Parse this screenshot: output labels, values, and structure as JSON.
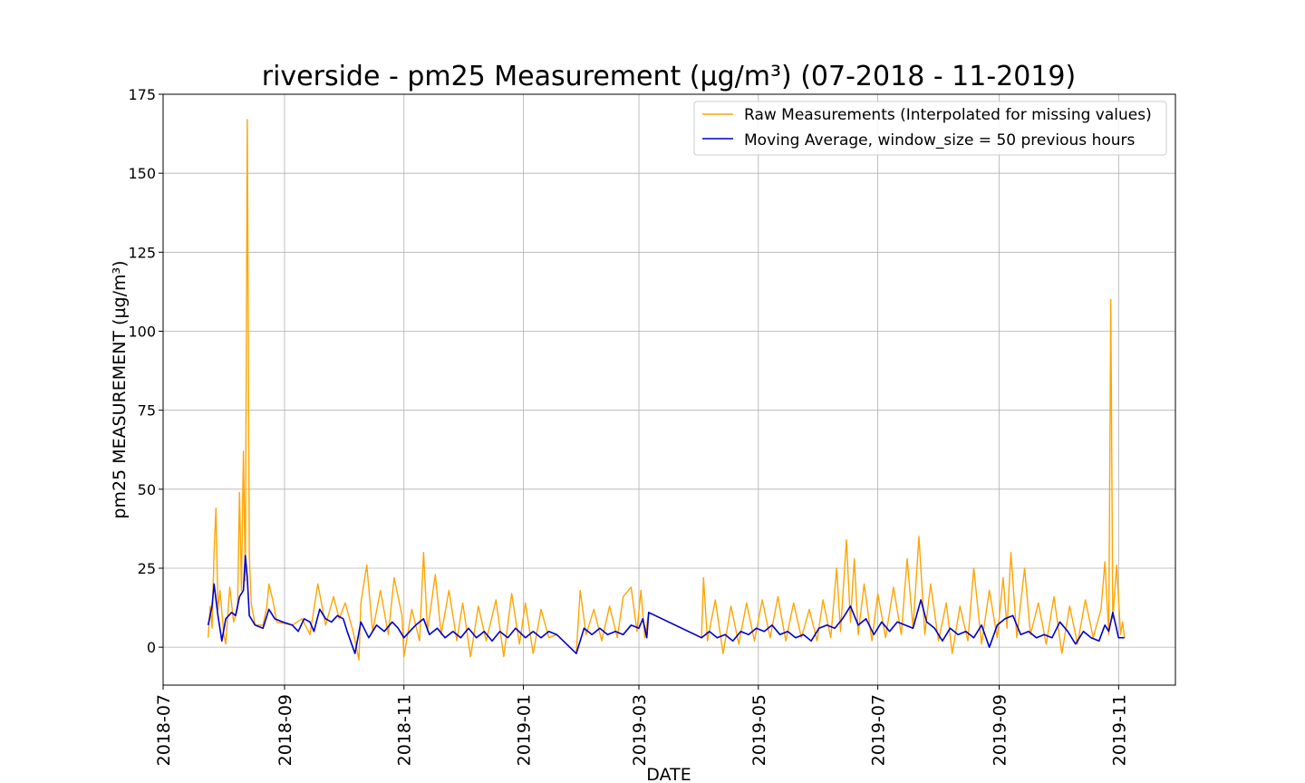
{
  "chart_data": {
    "type": "line",
    "title": "riverside - pm25 Measurement (µg/m³) (07-2018 - 11-2019)",
    "xlabel": "DATE",
    "ylabel": "pm25 MEASUREMENT (µg/m³)",
    "xlim": [
      "2018-07-01",
      "2019-11-30"
    ],
    "ylim": [
      -12,
      175
    ],
    "yticks": [
      0,
      25,
      50,
      75,
      100,
      125,
      150,
      175
    ],
    "xticks": [
      "2018-07",
      "2018-09",
      "2018-11",
      "2019-01",
      "2019-03",
      "2019-05",
      "2019-07",
      "2019-09",
      "2019-11"
    ],
    "grid": true,
    "legend_position": "top-right",
    "series": [
      {
        "name": "Raw Measurements (Interpolated for missing values)",
        "color": "#FFA500",
        "points": [
          [
            "2018-07-24",
            3
          ],
          [
            "2018-07-25",
            13
          ],
          [
            "2018-07-26",
            6
          ],
          [
            "2018-07-27",
            30
          ],
          [
            "2018-07-28",
            44
          ],
          [
            "2018-07-29",
            12
          ],
          [
            "2018-07-30",
            18
          ],
          [
            "2018-08-01",
            4
          ],
          [
            "2018-08-02",
            1
          ],
          [
            "2018-08-04",
            19
          ],
          [
            "2018-08-06",
            8
          ],
          [
            "2018-08-08",
            12
          ],
          [
            "2018-08-09",
            49
          ],
          [
            "2018-08-10",
            18
          ],
          [
            "2018-08-11",
            62
          ],
          [
            "2018-08-12",
            21
          ],
          [
            "2018-08-13",
            167
          ],
          [
            "2018-08-14",
            29
          ],
          [
            "2018-08-15",
            14
          ],
          [
            "2018-08-17",
            7
          ],
          [
            "2018-08-21",
            7
          ],
          [
            "2018-08-23",
            13
          ],
          [
            "2018-08-24",
            20
          ],
          [
            "2018-08-26",
            15
          ],
          [
            "2018-08-28",
            8
          ],
          [
            "2018-09-05",
            7
          ],
          [
            "2018-09-10",
            9
          ],
          [
            "2018-09-14",
            4
          ],
          [
            "2018-09-18",
            20
          ],
          [
            "2018-09-22",
            7
          ],
          [
            "2018-09-26",
            16
          ],
          [
            "2018-09-29",
            9
          ],
          [
            "2018-10-02",
            14
          ],
          [
            "2018-10-06",
            5
          ],
          [
            "2018-10-09",
            -4
          ],
          [
            "2018-10-10",
            14
          ],
          [
            "2018-10-13",
            26
          ],
          [
            "2018-10-16",
            5
          ],
          [
            "2018-10-20",
            18
          ],
          [
            "2018-10-24",
            4
          ],
          [
            "2018-10-27",
            22
          ],
          [
            "2018-10-31",
            10
          ],
          [
            "2018-11-01",
            -3
          ],
          [
            "2018-11-05",
            12
          ],
          [
            "2018-11-09",
            2
          ],
          [
            "2018-11-11",
            30
          ],
          [
            "2018-11-13",
            5
          ],
          [
            "2018-11-17",
            23
          ],
          [
            "2018-11-20",
            4
          ],
          [
            "2018-11-24",
            18
          ],
          [
            "2018-11-28",
            2
          ],
          [
            "2018-12-01",
            14
          ],
          [
            "2018-12-05",
            -3
          ],
          [
            "2018-12-09",
            13
          ],
          [
            "2018-12-13",
            2
          ],
          [
            "2018-12-18",
            15
          ],
          [
            "2018-12-22",
            -3
          ],
          [
            "2018-12-26",
            17
          ],
          [
            "2018-12-30",
            1
          ],
          [
            "2019-01-02",
            14
          ],
          [
            "2019-01-06",
            -2
          ],
          [
            "2019-01-10",
            12
          ],
          [
            "2019-01-14",
            3
          ],
          [
            "2019-01-18",
            4
          ],
          [
            "2019-01-28",
            -2
          ],
          [
            "2019-01-30",
            18
          ],
          [
            "2019-02-02",
            4
          ],
          [
            "2019-02-06",
            12
          ],
          [
            "2019-02-10",
            2
          ],
          [
            "2019-02-14",
            13
          ],
          [
            "2019-02-18",
            3
          ],
          [
            "2019-02-21",
            16
          ],
          [
            "2019-02-25",
            19
          ],
          [
            "2019-02-28",
            5
          ],
          [
            "2019-03-02",
            18
          ],
          [
            "2019-03-04",
            3
          ],
          [
            "2019-03-06",
            11
          ],
          [
            "2019-04-02",
            3
          ],
          [
            "2019-04-03",
            22
          ],
          [
            "2019-04-05",
            2
          ],
          [
            "2019-04-09",
            15
          ],
          [
            "2019-04-13",
            -2
          ],
          [
            "2019-04-17",
            13
          ],
          [
            "2019-04-21",
            1
          ],
          [
            "2019-04-25",
            14
          ],
          [
            "2019-04-29",
            2
          ],
          [
            "2019-05-03",
            15
          ],
          [
            "2019-05-07",
            3
          ],
          [
            "2019-05-11",
            16
          ],
          [
            "2019-05-15",
            2
          ],
          [
            "2019-05-19",
            14
          ],
          [
            "2019-05-23",
            3
          ],
          [
            "2019-05-27",
            12
          ],
          [
            "2019-05-31",
            2
          ],
          [
            "2019-06-03",
            15
          ],
          [
            "2019-06-07",
            3
          ],
          [
            "2019-06-10",
            25
          ],
          [
            "2019-06-12",
            5
          ],
          [
            "2019-06-15",
            34
          ],
          [
            "2019-06-17",
            8
          ],
          [
            "2019-06-19",
            28
          ],
          [
            "2019-06-21",
            4
          ],
          [
            "2019-06-24",
            20
          ],
          [
            "2019-06-28",
            2
          ],
          [
            "2019-07-01",
            17
          ],
          [
            "2019-07-05",
            3
          ],
          [
            "2019-07-09",
            19
          ],
          [
            "2019-07-13",
            4
          ],
          [
            "2019-07-16",
            28
          ],
          [
            "2019-07-19",
            6
          ],
          [
            "2019-07-22",
            35
          ],
          [
            "2019-07-25",
            4
          ],
          [
            "2019-07-28",
            20
          ],
          [
            "2019-08-01",
            2
          ],
          [
            "2019-08-05",
            14
          ],
          [
            "2019-08-08",
            -2
          ],
          [
            "2019-08-12",
            13
          ],
          [
            "2019-08-16",
            2
          ],
          [
            "2019-08-19",
            25
          ],
          [
            "2019-08-23",
            1
          ],
          [
            "2019-08-27",
            18
          ],
          [
            "2019-08-31",
            3
          ],
          [
            "2019-09-03",
            22
          ],
          [
            "2019-09-05",
            6
          ],
          [
            "2019-09-07",
            30
          ],
          [
            "2019-09-10",
            3
          ],
          [
            "2019-09-14",
            25
          ],
          [
            "2019-09-17",
            4
          ],
          [
            "2019-09-21",
            14
          ],
          [
            "2019-09-25",
            1
          ],
          [
            "2019-09-29",
            16
          ],
          [
            "2019-10-03",
            -2
          ],
          [
            "2019-10-07",
            13
          ],
          [
            "2019-10-11",
            1
          ],
          [
            "2019-10-15",
            15
          ],
          [
            "2019-10-19",
            3
          ],
          [
            "2019-10-23",
            12
          ],
          [
            "2019-10-25",
            27
          ],
          [
            "2019-10-27",
            4
          ],
          [
            "2019-10-28",
            110
          ],
          [
            "2019-10-29",
            9
          ],
          [
            "2019-10-31",
            26
          ],
          [
            "2019-11-02",
            4
          ],
          [
            "2019-11-03",
            8
          ],
          [
            "2019-11-04",
            3
          ]
        ]
      },
      {
        "name": "Moving Average, window_size = 50 previous hours",
        "color": "#0000CC",
        "points": [
          [
            "2018-07-24",
            7
          ],
          [
            "2018-07-26",
            13
          ],
          [
            "2018-07-27",
            20
          ],
          [
            "2018-07-29",
            10
          ],
          [
            "2018-07-31",
            2
          ],
          [
            "2018-08-02",
            9
          ],
          [
            "2018-08-05",
            11
          ],
          [
            "2018-08-07",
            10
          ],
          [
            "2018-08-09",
            16
          ],
          [
            "2018-08-11",
            18
          ],
          [
            "2018-08-12",
            29
          ],
          [
            "2018-08-13",
            22
          ],
          [
            "2018-08-14",
            10
          ],
          [
            "2018-08-17",
            7
          ],
          [
            "2018-08-21",
            6
          ],
          [
            "2018-08-24",
            12
          ],
          [
            "2018-08-27",
            9
          ],
          [
            "2018-08-31",
            8
          ],
          [
            "2018-09-05",
            7
          ],
          [
            "2018-09-08",
            5
          ],
          [
            "2018-09-11",
            9
          ],
          [
            "2018-09-14",
            8
          ],
          [
            "2018-09-16",
            5
          ],
          [
            "2018-09-19",
            12
          ],
          [
            "2018-09-22",
            9
          ],
          [
            "2018-09-25",
            8
          ],
          [
            "2018-09-28",
            10
          ],
          [
            "2018-10-01",
            9
          ],
          [
            "2018-10-03",
            5
          ],
          [
            "2018-10-07",
            -2
          ],
          [
            "2018-10-10",
            8
          ],
          [
            "2018-10-14",
            3
          ],
          [
            "2018-10-18",
            7
          ],
          [
            "2018-10-22",
            5
          ],
          [
            "2018-10-26",
            8
          ],
          [
            "2018-10-29",
            6
          ],
          [
            "2018-11-01",
            3
          ],
          [
            "2018-11-04",
            5
          ],
          [
            "2018-11-07",
            7
          ],
          [
            "2018-11-11",
            9
          ],
          [
            "2018-11-14",
            4
          ],
          [
            "2018-11-18",
            6
          ],
          [
            "2018-11-22",
            3
          ],
          [
            "2018-11-26",
            5
          ],
          [
            "2018-11-30",
            3
          ],
          [
            "2018-12-04",
            6
          ],
          [
            "2018-12-08",
            3
          ],
          [
            "2018-12-12",
            5
          ],
          [
            "2018-12-16",
            2
          ],
          [
            "2018-12-20",
            5
          ],
          [
            "2018-12-24",
            3
          ],
          [
            "2018-12-28",
            6
          ],
          [
            "2019-01-02",
            3
          ],
          [
            "2019-01-06",
            5
          ],
          [
            "2019-01-10",
            3
          ],
          [
            "2019-01-14",
            5
          ],
          [
            "2019-01-18",
            4
          ],
          [
            "2019-01-28",
            -2
          ],
          [
            "2019-02-01",
            6
          ],
          [
            "2019-02-05",
            4
          ],
          [
            "2019-02-09",
            6
          ],
          [
            "2019-02-13",
            4
          ],
          [
            "2019-02-17",
            5
          ],
          [
            "2019-02-21",
            4
          ],
          [
            "2019-02-25",
            7
          ],
          [
            "2019-03-01",
            6
          ],
          [
            "2019-03-03",
            9
          ],
          [
            "2019-03-05",
            3
          ],
          [
            "2019-03-06",
            11
          ],
          [
            "2019-04-02",
            3
          ],
          [
            "2019-04-06",
            5
          ],
          [
            "2019-04-10",
            3
          ],
          [
            "2019-04-14",
            4
          ],
          [
            "2019-04-18",
            2
          ],
          [
            "2019-04-22",
            5
          ],
          [
            "2019-04-26",
            4
          ],
          [
            "2019-04-30",
            6
          ],
          [
            "2019-05-04",
            5
          ],
          [
            "2019-05-08",
            7
          ],
          [
            "2019-05-12",
            4
          ],
          [
            "2019-05-16",
            5
          ],
          [
            "2019-05-20",
            3
          ],
          [
            "2019-05-24",
            4
          ],
          [
            "2019-05-28",
            2
          ],
          [
            "2019-06-01",
            6
          ],
          [
            "2019-06-05",
            7
          ],
          [
            "2019-06-09",
            6
          ],
          [
            "2019-06-13",
            9
          ],
          [
            "2019-06-17",
            13
          ],
          [
            "2019-06-21",
            7
          ],
          [
            "2019-06-25",
            9
          ],
          [
            "2019-06-29",
            4
          ],
          [
            "2019-07-03",
            8
          ],
          [
            "2019-07-07",
            5
          ],
          [
            "2019-07-11",
            8
          ],
          [
            "2019-07-15",
            7
          ],
          [
            "2019-07-19",
            6
          ],
          [
            "2019-07-23",
            15
          ],
          [
            "2019-07-26",
            8
          ],
          [
            "2019-07-30",
            6
          ],
          [
            "2019-08-03",
            2
          ],
          [
            "2019-08-07",
            6
          ],
          [
            "2019-08-11",
            4
          ],
          [
            "2019-08-15",
            5
          ],
          [
            "2019-08-19",
            3
          ],
          [
            "2019-08-23",
            7
          ],
          [
            "2019-08-27",
            0
          ],
          [
            "2019-08-31",
            7
          ],
          [
            "2019-09-04",
            9
          ],
          [
            "2019-09-08",
            10
          ],
          [
            "2019-09-12",
            4
          ],
          [
            "2019-09-16",
            5
          ],
          [
            "2019-09-20",
            3
          ],
          [
            "2019-09-24",
            4
          ],
          [
            "2019-09-28",
            3
          ],
          [
            "2019-10-02",
            8
          ],
          [
            "2019-10-06",
            5
          ],
          [
            "2019-10-10",
            1
          ],
          [
            "2019-10-14",
            5
          ],
          [
            "2019-10-18",
            3
          ],
          [
            "2019-10-22",
            2
          ],
          [
            "2019-10-25",
            7
          ],
          [
            "2019-10-27",
            5
          ],
          [
            "2019-10-29",
            11
          ],
          [
            "2019-11-01",
            3
          ],
          [
            "2019-11-04",
            3
          ]
        ]
      }
    ]
  }
}
